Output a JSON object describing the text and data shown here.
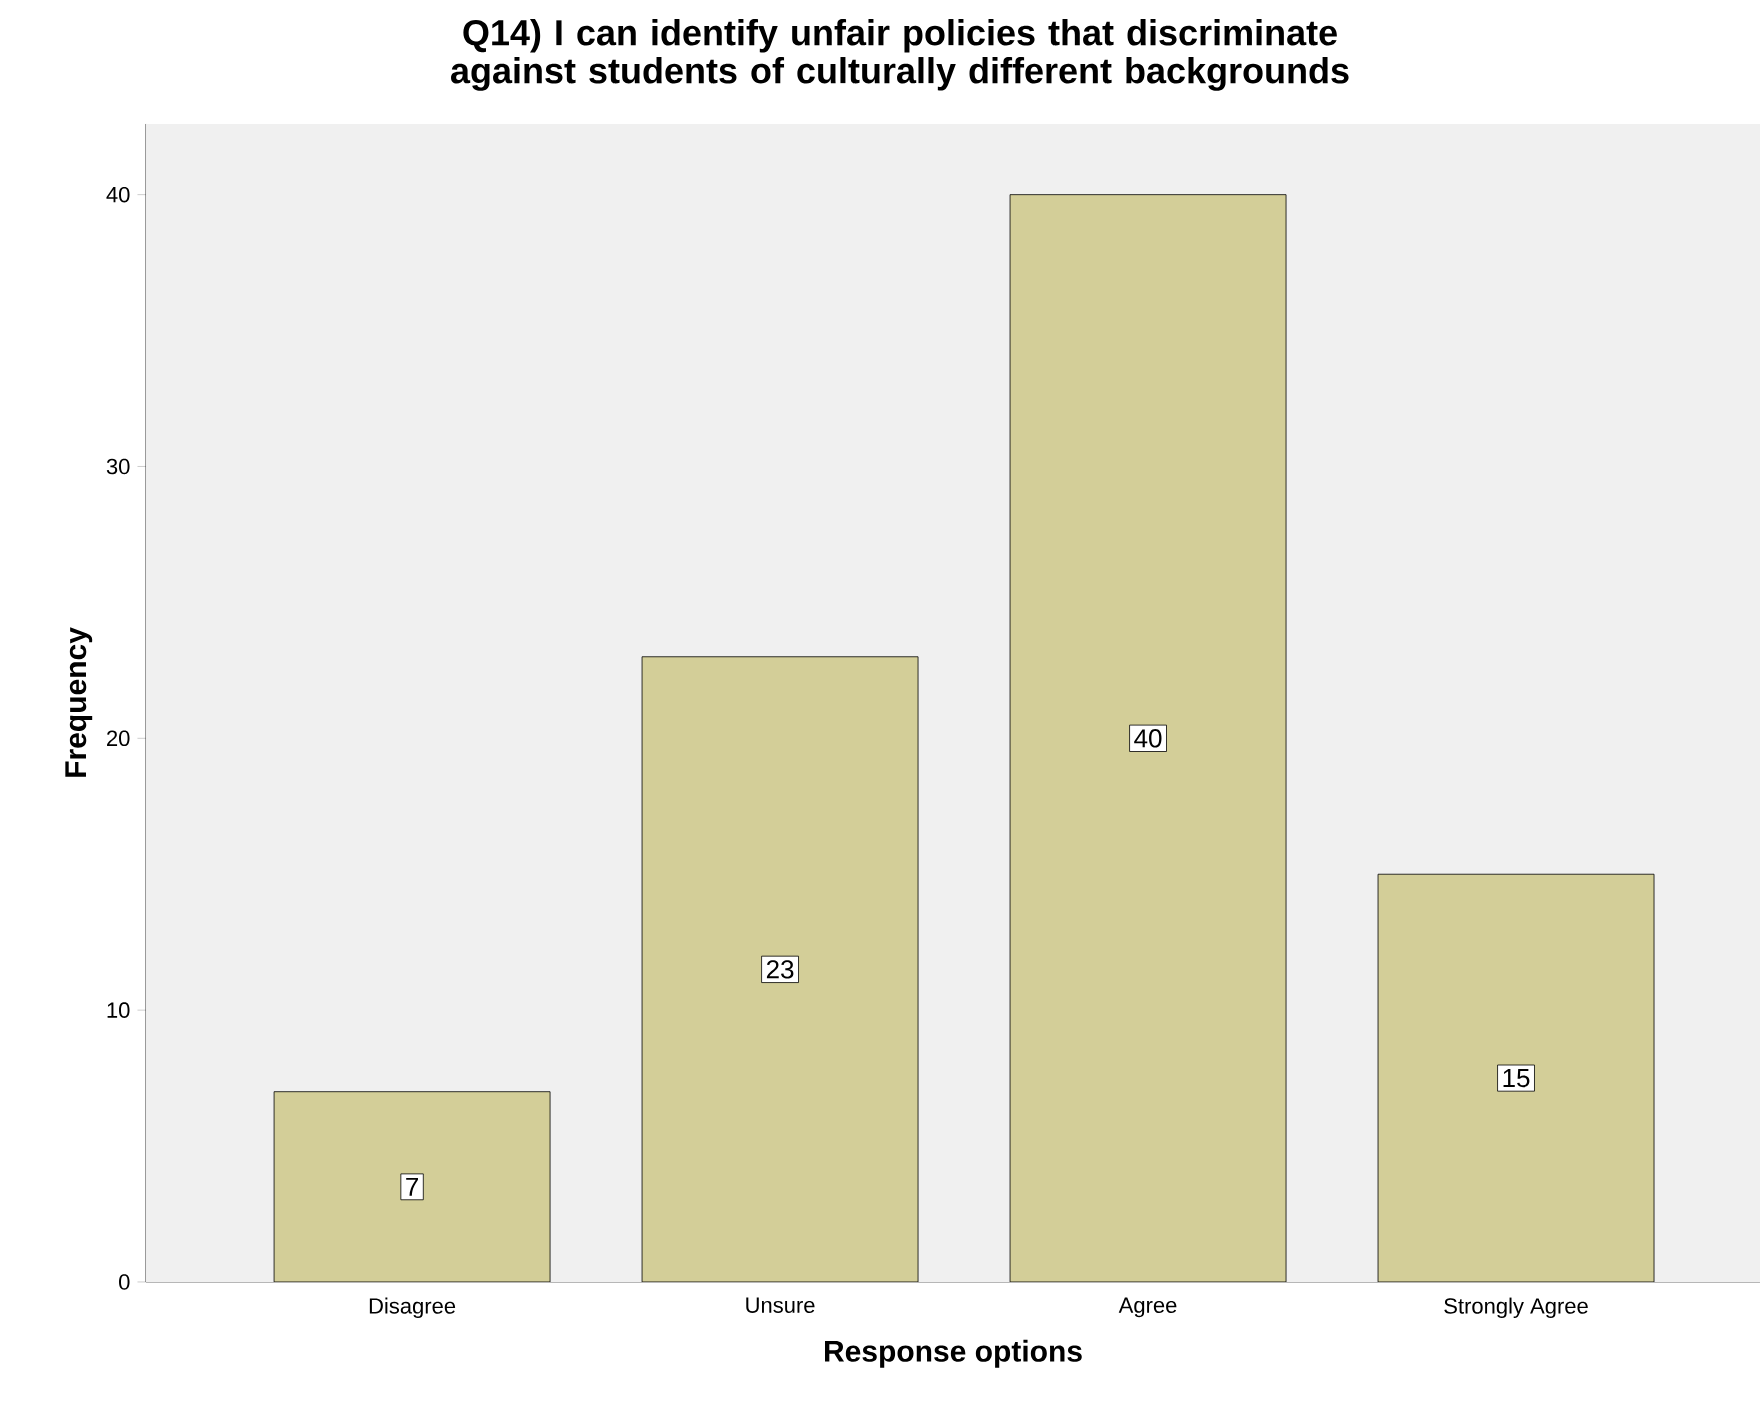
{
  "chart_data": {
    "type": "bar",
    "title": "Q14) I can identify unfair policies that discriminate against students of culturally different backgrounds",
    "categories": [
      "Disagree",
      "Unsure",
      "Agree",
      "Strongly Agree"
    ],
    "values": [
      7,
      23,
      40,
      15
    ],
    "color": "#d3ce98",
    "xlabel": "Response options",
    "ylabel": "Frequency",
    "ylim": [
      0,
      42.6
    ],
    "yticks": [
      0,
      10,
      20,
      30,
      40
    ],
    "data_labels": true
  }
}
